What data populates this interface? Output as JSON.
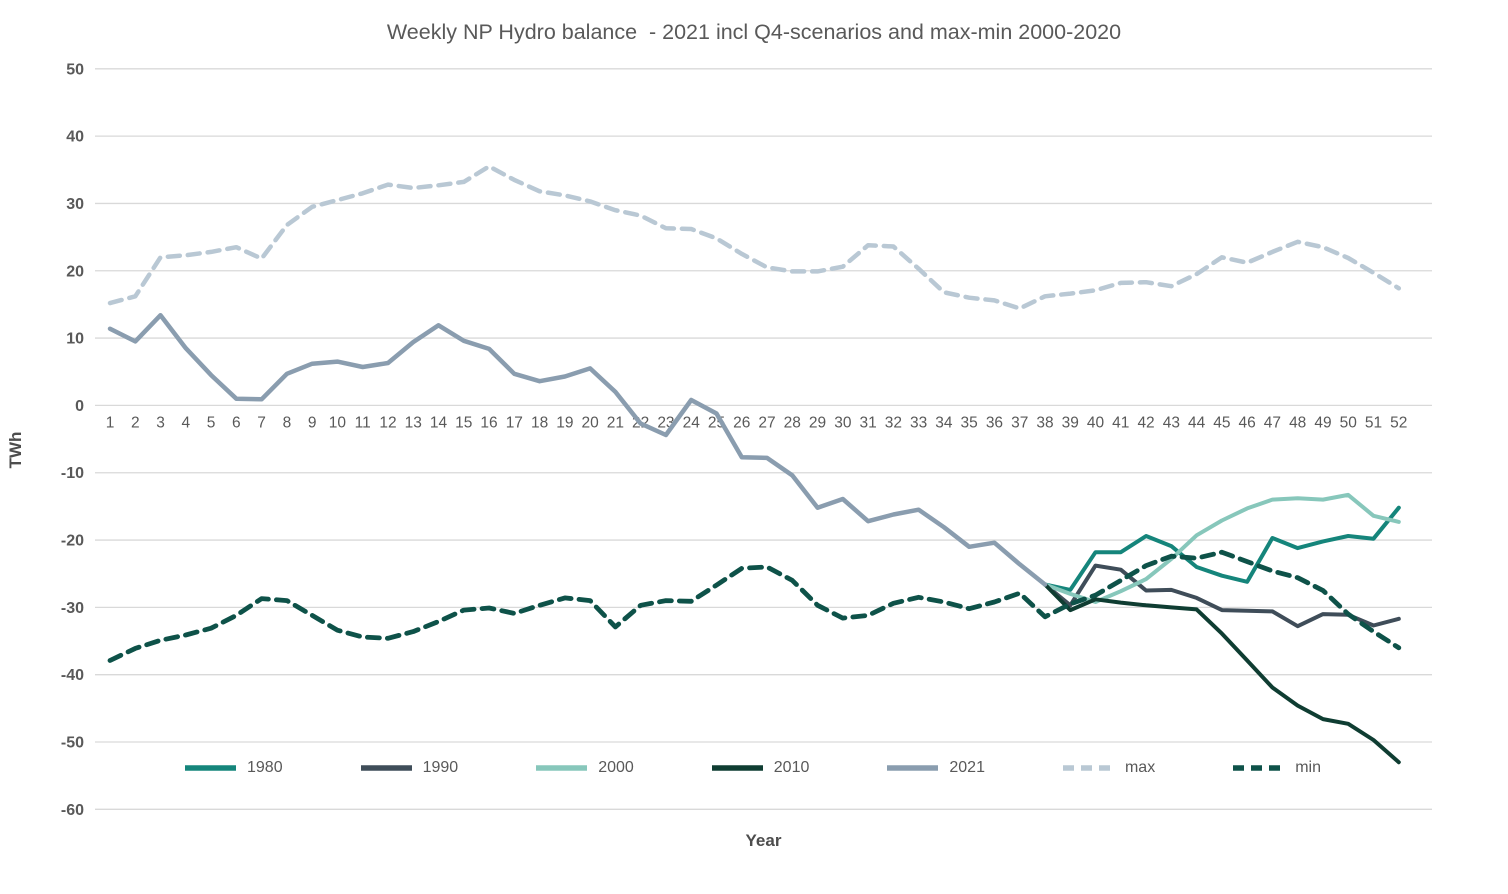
{
  "title": "Weekly NP Hydro balance  - 2021 incl Q4-scenarios and max-min 2000-2020",
  "y_axis": {
    "label": "TWh",
    "min": -60,
    "max": 50,
    "tick_step": 10,
    "ticks": [
      50,
      40,
      30,
      20,
      10,
      0,
      -10,
      -20,
      -30,
      -40,
      -50,
      -60
    ]
  },
  "x_axis": {
    "label": "Year",
    "ticks": [
      1,
      2,
      3,
      4,
      5,
      6,
      7,
      8,
      9,
      10,
      11,
      12,
      13,
      14,
      15,
      16,
      17,
      18,
      19,
      20,
      21,
      22,
      23,
      24,
      25,
      26,
      27,
      28,
      29,
      30,
      31,
      32,
      33,
      34,
      35,
      36,
      37,
      38,
      39,
      40,
      41,
      42,
      43,
      44,
      45,
      46,
      47,
      48,
      49,
      50,
      51,
      52
    ]
  },
  "colors": {
    "grid": "#d9d9d9",
    "tick_text": "#595959",
    "title_text": "#595959",
    "axis_title_text": "#4d4d4d"
  },
  "chart_data": {
    "type": "line",
    "title": "Weekly NP Hydro balance  - 2021 incl Q4-scenarios and max-min 2000-2020",
    "xlabel": "Year",
    "ylabel": "TWh",
    "ylim": [
      -60,
      50
    ],
    "grid": true,
    "legend_position": "bottom",
    "x": [
      1,
      2,
      3,
      4,
      5,
      6,
      7,
      8,
      9,
      10,
      11,
      12,
      13,
      14,
      15,
      16,
      17,
      18,
      19,
      20,
      21,
      22,
      23,
      24,
      25,
      26,
      27,
      28,
      29,
      30,
      31,
      32,
      33,
      34,
      35,
      36,
      37,
      38,
      39,
      40,
      41,
      42,
      43,
      44,
      45,
      46,
      47,
      48,
      49,
      50,
      51,
      52
    ],
    "series": [
      {
        "name": "1980",
        "color": "#15857b",
        "dashed": false,
        "width": 4,
        "values": [
          null,
          null,
          null,
          null,
          null,
          null,
          null,
          null,
          null,
          null,
          null,
          null,
          null,
          null,
          null,
          null,
          null,
          null,
          null,
          null,
          null,
          null,
          null,
          null,
          null,
          null,
          null,
          null,
          null,
          null,
          null,
          null,
          null,
          null,
          null,
          null,
          null,
          -26.6,
          -27.4,
          -21.8,
          -21.8,
          -19.4,
          -20.9,
          -24.0,
          -25.3,
          -26.2,
          -19.7,
          -21.2,
          -20.2,
          -19.4,
          -19.8,
          -15.2
        ]
      },
      {
        "name": "1990",
        "color": "#3f4d59",
        "dashed": false,
        "width": 4,
        "values": [
          null,
          null,
          null,
          null,
          null,
          null,
          null,
          null,
          null,
          null,
          null,
          null,
          null,
          null,
          null,
          null,
          null,
          null,
          null,
          null,
          null,
          null,
          null,
          null,
          null,
          null,
          null,
          null,
          null,
          null,
          null,
          null,
          null,
          null,
          null,
          null,
          null,
          -26.6,
          -29.7,
          -23.8,
          -24.4,
          -27.5,
          -27.4,
          -28.6,
          -30.4,
          -30.5,
          -30.6,
          -32.8,
          -31.0,
          -31.1,
          -32.7,
          -31.7
        ]
      },
      {
        "name": "2000",
        "color": "#87c7bb",
        "dashed": false,
        "width": 4,
        "values": [
          null,
          null,
          null,
          null,
          null,
          null,
          null,
          null,
          null,
          null,
          null,
          null,
          null,
          null,
          null,
          null,
          null,
          null,
          null,
          null,
          null,
          null,
          null,
          null,
          null,
          null,
          null,
          null,
          null,
          null,
          null,
          null,
          null,
          null,
          null,
          null,
          null,
          -26.6,
          -28.0,
          -29.2,
          -27.6,
          -25.8,
          -22.8,
          -19.3,
          -17.1,
          -15.3,
          -14.0,
          -13.8,
          -14.0,
          -13.3,
          -16.4,
          -17.3
        ]
      },
      {
        "name": "2010",
        "color": "#0f3d32",
        "dashed": false,
        "width": 4,
        "values": [
          null,
          null,
          null,
          null,
          null,
          null,
          null,
          null,
          null,
          null,
          null,
          null,
          null,
          null,
          null,
          null,
          null,
          null,
          null,
          null,
          null,
          null,
          null,
          null,
          null,
          null,
          null,
          null,
          null,
          null,
          null,
          null,
          null,
          null,
          null,
          null,
          null,
          -26.6,
          -30.4,
          -28.8,
          -29.3,
          -29.7,
          -30.0,
          -30.3,
          -33.9,
          -37.9,
          -41.9,
          -44.6,
          -46.6,
          -47.3,
          -49.7,
          -53.0
        ]
      },
      {
        "name": "2021",
        "color": "#8a9daf",
        "dashed": false,
        "width": 4.5,
        "values": [
          11.4,
          9.5,
          13.4,
          8.5,
          4.5,
          1.0,
          0.9,
          4.7,
          6.2,
          6.5,
          5.7,
          6.3,
          9.4,
          11.9,
          9.6,
          8.4,
          4.7,
          3.6,
          4.3,
          5.5,
          2.0,
          -2.7,
          -4.4,
          0.8,
          -1.2,
          -7.7,
          -7.8,
          -10.4,
          -15.2,
          -13.9,
          -17.2,
          -16.2,
          -15.5,
          -18.1,
          -21.0,
          -20.4,
          -23.6,
          -26.6,
          null,
          null,
          null,
          null,
          null,
          null,
          null,
          null,
          null,
          null,
          null,
          null,
          null,
          null
        ]
      },
      {
        "name": "max",
        "color": "#b9c8d4",
        "dashed": true,
        "width": 4.5,
        "values": [
          15.2,
          16.2,
          22.0,
          22.3,
          22.8,
          23.5,
          21.8,
          26.8,
          29.5,
          30.5,
          31.5,
          32.8,
          32.3,
          32.7,
          33.2,
          35.5,
          33.5,
          31.8,
          31.2,
          30.3,
          29.0,
          28.2,
          26.3,
          26.2,
          24.8,
          22.5,
          20.5,
          19.9,
          19.9,
          20.6,
          23.8,
          23.6,
          20.3,
          16.8,
          16.0,
          15.6,
          14.4,
          16.2,
          16.6,
          17.1,
          18.2,
          18.3,
          17.7,
          19.5,
          22.0,
          21.2,
          22.8,
          24.3,
          23.5,
          21.9,
          19.7,
          17.4
        ]
      },
      {
        "name": "min",
        "color": "#0e5249",
        "dashed": true,
        "width": 4.8,
        "values": [
          -37.9,
          -36.1,
          -34.9,
          -34.1,
          -33.1,
          -31.2,
          -28.7,
          -29.0,
          -31.2,
          -33.4,
          -34.4,
          -34.6,
          -33.6,
          -32.1,
          -30.4,
          -30.1,
          -30.9,
          -29.7,
          -28.6,
          -29.0,
          -32.9,
          -29.7,
          -29.0,
          -29.1,
          -26.7,
          -24.2,
          -24.0,
          -26.0,
          -29.7,
          -31.6,
          -31.2,
          -29.4,
          -28.5,
          -29.2,
          -30.2,
          -29.2,
          -27.9,
          -31.4,
          -29.5,
          -28.2,
          -26.0,
          -23.8,
          -22.4,
          -22.7,
          -21.8,
          -23.2,
          -24.6,
          -25.6,
          -27.5,
          -31.0,
          -33.6,
          -36.0
        ]
      }
    ]
  }
}
